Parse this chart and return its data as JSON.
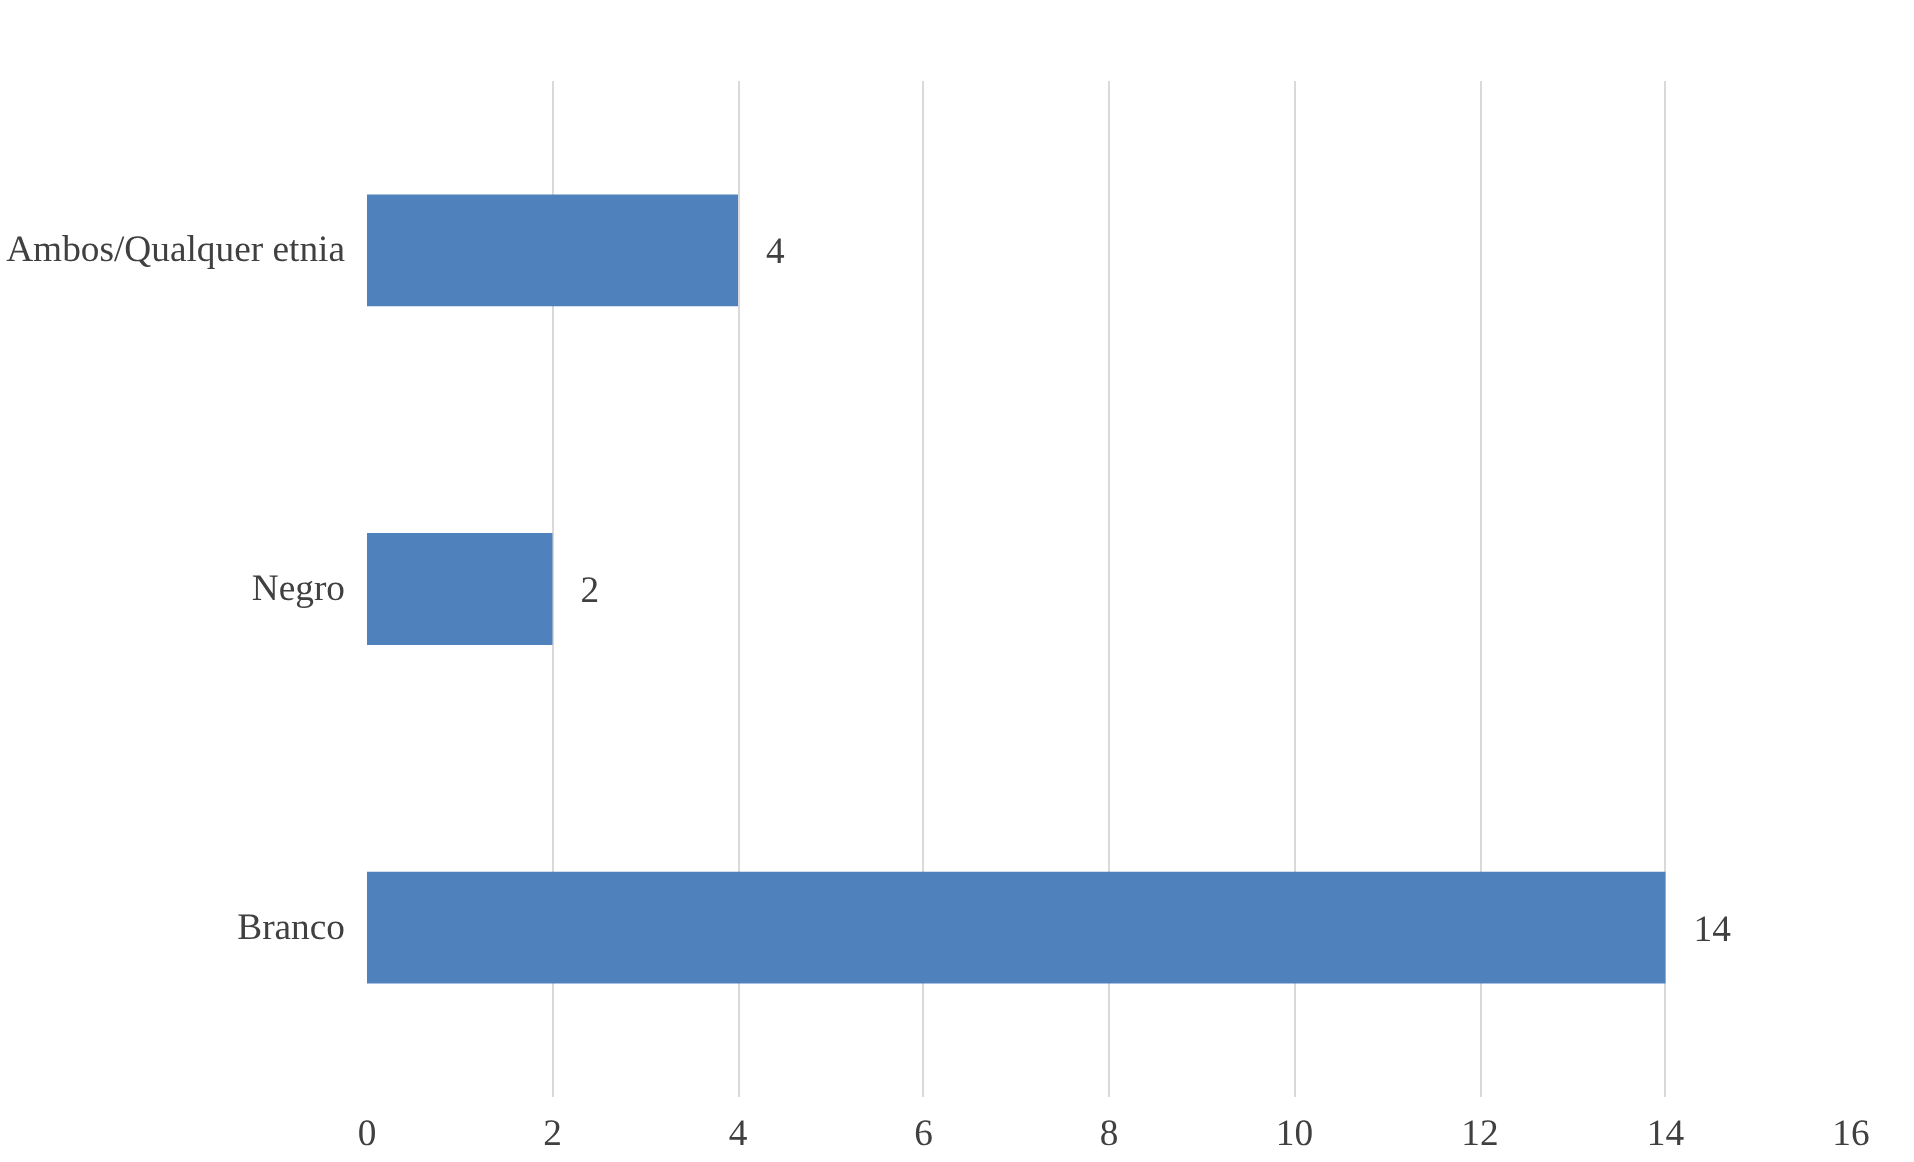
{
  "chart_data": {
    "type": "bar",
    "orientation": "horizontal",
    "categories": [
      "Ambos/Qualquer etnia",
      "Negro",
      "Branco"
    ],
    "values": [
      4,
      2,
      14
    ],
    "color": "#4f81bd",
    "xlim": [
      0,
      16
    ],
    "xticks": [
      0,
      2,
      4,
      6,
      8,
      10,
      12,
      14,
      16
    ],
    "grid": "x",
    "data_labels": true
  }
}
